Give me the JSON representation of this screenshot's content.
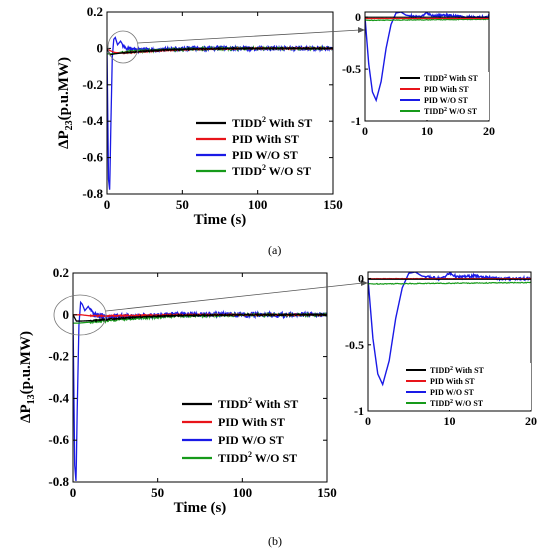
{
  "captions": {
    "a": "(a)",
    "b": "(b)"
  },
  "colors": {
    "with_st_tidd": "#000000",
    "pid_with_st": "#e8141a",
    "pid_wo_st": "#1a1ae6",
    "tidd_wo_st": "#169a1a"
  },
  "chart_data": [
    {
      "panel": "a",
      "type": "line",
      "ylabel_main": "ΔP",
      "ylabel_sub": "23",
      "ylabel_unit": "(p.u.MW)",
      "xlabel": "Time (s)",
      "xlim": [
        0,
        150
      ],
      "ylim": [
        -0.8,
        0.2
      ],
      "xticks": [
        0,
        50,
        100,
        150
      ],
      "yticks": [
        0.2,
        0,
        -0.2,
        -0.4,
        -0.6,
        -0.8
      ],
      "xtick_labels": [
        "0",
        "50",
        "100",
        "150"
      ],
      "ytick_labels": [
        "0.2",
        "0",
        "-0.2",
        "-0.4",
        "-0.6",
        "-0.8"
      ],
      "legend": {
        "position": "lower-right",
        "entries": [
          {
            "main": "TIDD",
            "sup": "2",
            "rest": " With ST",
            "color": "#000000"
          },
          {
            "main": "PID With ST",
            "sup": "",
            "rest": "",
            "color": "#e8141a"
          },
          {
            "main": "PID W/O ST",
            "sup": "",
            "rest": "",
            "color": "#1a1ae6"
          },
          {
            "main": "TIDD",
            "sup": "2",
            "rest": " W/O ST",
            "color": "#169a1a"
          }
        ]
      },
      "series": [
        {
          "name": "TIDD² With ST",
          "x": [
            0,
            2,
            5,
            10,
            20,
            40,
            60,
            100,
            150
          ],
          "y": [
            0,
            -0.035,
            -0.03,
            -0.025,
            -0.018,
            -0.008,
            -0.003,
            0,
            0
          ]
        },
        {
          "name": "PID With ST",
          "x": [
            0,
            2,
            5,
            10,
            20,
            40,
            60,
            100,
            150
          ],
          "y": [
            0,
            -0.012,
            -0.022,
            -0.026,
            -0.02,
            -0.01,
            -0.004,
            0,
            0
          ]
        },
        {
          "name": "PID W/O ST",
          "x": [
            0,
            0.5,
            1,
            1.8,
            2.5,
            3.5,
            4.5,
            5.5,
            7,
            9,
            12,
            20,
            40,
            60,
            100,
            150
          ],
          "y": [
            0,
            -0.35,
            -0.72,
            -0.78,
            -0.45,
            -0.05,
            0.05,
            0.06,
            0.02,
            0.04,
            0.0,
            -0.01,
            -0.005,
            0.0,
            0.0,
            0.0
          ]
        },
        {
          "name": "TIDD² W/O ST",
          "x": [
            0,
            3,
            10,
            20,
            40,
            60,
            100,
            150
          ],
          "y": [
            -0.03,
            -0.03,
            -0.02,
            -0.015,
            -0.008,
            -0.003,
            0,
            0
          ]
        }
      ],
      "inset": {
        "xlim": [
          0,
          20
        ],
        "ylim": [
          -1,
          0.05
        ],
        "xticks": [
          0,
          10,
          20
        ],
        "yticks": [
          0,
          -0.5,
          -1
        ],
        "xtick_labels": [
          "0",
          "10",
          "20"
        ],
        "ytick_labels": [
          "0",
          "-0.5",
          "-1"
        ],
        "pid_wo": {
          "x": [
            0,
            0.6,
            1.2,
            1.8,
            2.6,
            3.4,
            4.2,
            5,
            5.8,
            6.6,
            7.5,
            9,
            10,
            11,
            13,
            16,
            20
          ],
          "y": [
            0,
            -0.45,
            -0.72,
            -0.8,
            -0.62,
            -0.3,
            -0.07,
            0.04,
            0.05,
            0.02,
            0.01,
            0.0,
            0.04,
            0.01,
            0.02,
            0.0,
            0.0
          ]
        }
      }
    },
    {
      "panel": "b",
      "type": "line",
      "ylabel_main": "ΔP",
      "ylabel_sub": "13",
      "ylabel_unit": "(p.u.MW)",
      "xlabel": "Time (s)",
      "xlim": [
        0,
        150
      ],
      "ylim": [
        -0.8,
        0.2
      ],
      "xticks": [
        0,
        50,
        100,
        150
      ],
      "yticks": [
        0.2,
        0,
        -0.2,
        -0.4,
        -0.6,
        -0.8
      ],
      "xtick_labels": [
        "0",
        "50",
        "100",
        "150"
      ],
      "ytick_labels": [
        "0.2",
        "0",
        "-0.2",
        "-0.4",
        "-0.6",
        "-0.8"
      ],
      "legend": {
        "position": "lower-right",
        "entries": [
          {
            "main": "TIDD",
            "sup": "2",
            "rest": " With ST",
            "color": "#000000"
          },
          {
            "main": "PID With ST",
            "sup": "",
            "rest": "",
            "color": "#e8141a"
          },
          {
            "main": "PID W/O ST",
            "sup": "",
            "rest": "",
            "color": "#1a1ae6"
          },
          {
            "main": "TIDD",
            "sup": "2",
            "rest": " W/O ST",
            "color": "#169a1a"
          }
        ]
      },
      "series": [
        {
          "name": "TIDD² With ST",
          "x": [
            0,
            2,
            5,
            10,
            20,
            40,
            60,
            100,
            150
          ],
          "y": [
            0,
            -0.03,
            -0.03,
            -0.028,
            -0.022,
            -0.01,
            -0.004,
            0,
            0
          ]
        },
        {
          "name": "PID With ST",
          "x": [
            0,
            5,
            10,
            20,
            40,
            60,
            100,
            150
          ],
          "y": [
            0,
            0,
            -0.005,
            -0.005,
            -0.003,
            0.0,
            0.0,
            0.0
          ]
        },
        {
          "name": "PID W/O ST",
          "x": [
            0,
            0.5,
            1,
            1.8,
            2.5,
            3.5,
            4.5,
            5.5,
            7,
            9,
            12,
            20,
            40,
            60,
            100,
            150
          ],
          "y": [
            0,
            -0.35,
            -0.72,
            -0.8,
            -0.45,
            -0.05,
            0.06,
            0.05,
            0.02,
            0.04,
            0.0,
            -0.01,
            -0.005,
            0.0,
            0.0,
            0.0
          ]
        },
        {
          "name": "TIDD² W/O ST",
          "x": [
            0,
            3,
            10,
            20,
            40,
            60,
            100,
            150
          ],
          "y": [
            -0.04,
            -0.04,
            -0.035,
            -0.028,
            -0.015,
            -0.006,
            0,
            0
          ]
        }
      ],
      "inset": {
        "xlim": [
          0,
          20
        ],
        "ylim": [
          -1,
          0.05
        ],
        "xticks": [
          0,
          10,
          20
        ],
        "yticks": [
          0,
          -0.5,
          -1
        ],
        "xtick_labels": [
          "0",
          "10",
          "20"
        ],
        "ytick_labels": [
          "0",
          "-0.5",
          "-1"
        ],
        "pid_wo": {
          "x": [
            0,
            0.6,
            1.2,
            1.8,
            2.6,
            3.4,
            4.2,
            5,
            5.8,
            6.6,
            7.5,
            9,
            10,
            11,
            13,
            16,
            20
          ],
          "y": [
            0,
            -0.45,
            -0.72,
            -0.8,
            -0.62,
            -0.3,
            -0.07,
            0.04,
            0.05,
            0.02,
            0.01,
            0.0,
            0.04,
            0.01,
            0.02,
            0.0,
            0.0
          ]
        }
      }
    }
  ]
}
